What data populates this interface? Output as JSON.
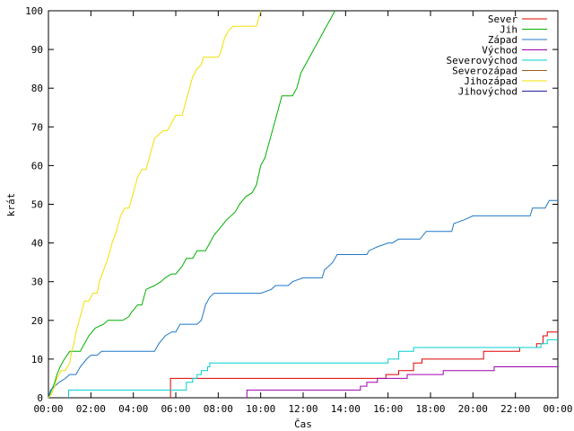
{
  "chart_data": {
    "type": "line",
    "title": "",
    "xlabel": "Čas",
    "ylabel": "krát",
    "xlim": [
      0,
      24
    ],
    "ylim": [
      0,
      100
    ],
    "grid": false,
    "legend_position": "top-right",
    "x_ticks": [
      {
        "value": 0,
        "label": "00:00"
      },
      {
        "value": 2,
        "label": "02:00"
      },
      {
        "value": 4,
        "label": "04:00"
      },
      {
        "value": 6,
        "label": "06:00"
      },
      {
        "value": 8,
        "label": "08:00"
      },
      {
        "value": 10,
        "label": "10:00"
      },
      {
        "value": 12,
        "label": "12:00"
      },
      {
        "value": 14,
        "label": "14:00"
      },
      {
        "value": 16,
        "label": "16:00"
      },
      {
        "value": 18,
        "label": "18:00"
      },
      {
        "value": 20,
        "label": "20:00"
      },
      {
        "value": 22,
        "label": "22:00"
      },
      {
        "value": 24,
        "label": "00:00"
      }
    ],
    "y_ticks": [
      0,
      10,
      20,
      30,
      40,
      50,
      60,
      70,
      80,
      90,
      100
    ],
    "series": [
      {
        "name": "Sever",
        "color": "#e00000",
        "points": [
          [
            5.75,
            0
          ],
          [
            5.75,
            5
          ],
          [
            14.0,
            5
          ],
          [
            15.9,
            5
          ],
          [
            15.9,
            6
          ],
          [
            16.5,
            6
          ],
          [
            16.5,
            7
          ],
          [
            17.2,
            7
          ],
          [
            17.2,
            9
          ],
          [
            17.6,
            9
          ],
          [
            17.6,
            10
          ],
          [
            20.5,
            10
          ],
          [
            20.5,
            12
          ],
          [
            22.2,
            12
          ],
          [
            22.2,
            13
          ],
          [
            23.0,
            13
          ],
          [
            23.0,
            14
          ],
          [
            23.3,
            14
          ],
          [
            23.3,
            16
          ],
          [
            23.5,
            16
          ],
          [
            23.5,
            17
          ],
          [
            24.0,
            17
          ]
        ]
      },
      {
        "name": "Jih",
        "color": "#00b000",
        "points": [
          [
            0.0,
            0
          ],
          [
            0.15,
            2
          ],
          [
            0.3,
            4
          ],
          [
            0.4,
            6
          ],
          [
            0.55,
            8
          ],
          [
            0.75,
            10
          ],
          [
            1.0,
            12
          ],
          [
            1.2,
            12
          ],
          [
            1.5,
            12
          ],
          [
            1.7,
            14
          ],
          [
            1.9,
            16
          ],
          [
            2.2,
            18
          ],
          [
            2.6,
            19
          ],
          [
            2.8,
            20
          ],
          [
            3.5,
            20
          ],
          [
            3.8,
            21
          ],
          [
            3.9,
            22
          ],
          [
            4.2,
            24
          ],
          [
            4.4,
            24
          ],
          [
            4.5,
            26
          ],
          [
            4.6,
            28
          ],
          [
            5.0,
            29
          ],
          [
            5.3,
            30
          ],
          [
            5.5,
            31
          ],
          [
            5.8,
            32
          ],
          [
            6.0,
            32
          ],
          [
            6.3,
            34
          ],
          [
            6.5,
            36
          ],
          [
            6.8,
            36
          ],
          [
            7.0,
            38
          ],
          [
            7.4,
            38
          ],
          [
            7.6,
            40
          ],
          [
            7.8,
            42
          ],
          [
            8.1,
            44
          ],
          [
            8.4,
            46
          ],
          [
            8.8,
            48
          ],
          [
            9.0,
            50
          ],
          [
            9.3,
            52
          ],
          [
            9.6,
            53
          ],
          [
            9.8,
            55
          ],
          [
            10.0,
            60
          ],
          [
            10.2,
            62
          ],
          [
            10.4,
            66
          ],
          [
            10.6,
            70
          ],
          [
            10.8,
            74
          ],
          [
            11.0,
            78
          ],
          [
            11.5,
            78
          ],
          [
            11.7,
            80
          ],
          [
            11.9,
            84
          ],
          [
            12.1,
            86
          ],
          [
            12.3,
            88
          ],
          [
            12.5,
            90
          ],
          [
            12.7,
            92
          ],
          [
            12.9,
            94
          ],
          [
            13.1,
            96
          ],
          [
            13.3,
            98
          ],
          [
            13.5,
            100
          ]
        ]
      },
      {
        "name": "Západ",
        "color": "#1f78c8",
        "points": [
          [
            0.0,
            0
          ],
          [
            0.1,
            2
          ],
          [
            0.3,
            3
          ],
          [
            0.5,
            4
          ],
          [
            0.8,
            5
          ],
          [
            1.0,
            6
          ],
          [
            1.3,
            6
          ],
          [
            1.5,
            8
          ],
          [
            1.8,
            10
          ],
          [
            2.0,
            11
          ],
          [
            2.3,
            11
          ],
          [
            2.5,
            12
          ],
          [
            3.5,
            12
          ],
          [
            4.0,
            12
          ],
          [
            5.0,
            12
          ],
          [
            5.2,
            14
          ],
          [
            5.5,
            16
          ],
          [
            5.8,
            17
          ],
          [
            6.0,
            17
          ],
          [
            6.2,
            19
          ],
          [
            7.0,
            19
          ],
          [
            7.2,
            20
          ],
          [
            7.3,
            22
          ],
          [
            7.4,
            24
          ],
          [
            7.6,
            26
          ],
          [
            7.8,
            27
          ],
          [
            10.0,
            27
          ],
          [
            10.5,
            28
          ],
          [
            10.7,
            29
          ],
          [
            11.3,
            29
          ],
          [
            11.5,
            30
          ],
          [
            12.0,
            31
          ],
          [
            12.9,
            31
          ],
          [
            13.0,
            33
          ],
          [
            13.2,
            34
          ],
          [
            13.4,
            35
          ],
          [
            13.6,
            37
          ],
          [
            14.0,
            37
          ],
          [
            15.0,
            37
          ],
          [
            15.1,
            38
          ],
          [
            15.5,
            39
          ],
          [
            16.0,
            40
          ],
          [
            16.2,
            40
          ],
          [
            16.5,
            41
          ],
          [
            17.5,
            41
          ],
          [
            17.8,
            43
          ],
          [
            19.0,
            43
          ],
          [
            19.1,
            45
          ],
          [
            19.6,
            46
          ],
          [
            20.0,
            47
          ],
          [
            22.7,
            47
          ],
          [
            22.8,
            49
          ],
          [
            23.4,
            49
          ],
          [
            23.6,
            51
          ],
          [
            24.0,
            51
          ]
        ]
      },
      {
        "name": "Východ",
        "color": "#a000b0",
        "points": [
          [
            9.35,
            0
          ],
          [
            9.35,
            2
          ],
          [
            14.7,
            2
          ],
          [
            14.7,
            3
          ],
          [
            15.0,
            3
          ],
          [
            15.0,
            4
          ],
          [
            15.5,
            4
          ],
          [
            15.5,
            5
          ],
          [
            16.9,
            5
          ],
          [
            16.9,
            6
          ],
          [
            18.6,
            6
          ],
          [
            18.6,
            7
          ],
          [
            21.0,
            7
          ],
          [
            21.0,
            8
          ],
          [
            24.0,
            8
          ]
        ]
      },
      {
        "name": "Severovýchod",
        "color": "#00d0d0",
        "points": [
          [
            0.95,
            0
          ],
          [
            0.95,
            2
          ],
          [
            6.5,
            2
          ],
          [
            6.5,
            4
          ],
          [
            6.8,
            4
          ],
          [
            6.8,
            5
          ],
          [
            7.0,
            5
          ],
          [
            7.0,
            6
          ],
          [
            7.2,
            6
          ],
          [
            7.2,
            7
          ],
          [
            7.5,
            7
          ],
          [
            7.5,
            8
          ],
          [
            7.6,
            8
          ],
          [
            7.6,
            9
          ],
          [
            16.0,
            9
          ],
          [
            16.0,
            10
          ],
          [
            16.5,
            10
          ],
          [
            16.5,
            12
          ],
          [
            17.2,
            12
          ],
          [
            17.2,
            13
          ],
          [
            23.2,
            13
          ],
          [
            23.2,
            14
          ],
          [
            23.5,
            14
          ],
          [
            23.5,
            15
          ],
          [
            24.0,
            15
          ]
        ]
      },
      {
        "name": "Severozápad",
        "color": "#a06020",
        "points": []
      },
      {
        "name": "Jihozápad",
        "color": "#f0e000",
        "points": [
          [
            0.0,
            0
          ],
          [
            0.15,
            1
          ],
          [
            0.3,
            3
          ],
          [
            0.4,
            5
          ],
          [
            0.6,
            7
          ],
          [
            0.8,
            7
          ],
          [
            1.0,
            9
          ],
          [
            1.1,
            12
          ],
          [
            1.2,
            14
          ],
          [
            1.3,
            17
          ],
          [
            1.4,
            19
          ],
          [
            1.5,
            21
          ],
          [
            1.6,
            23
          ],
          [
            1.7,
            25
          ],
          [
            1.9,
            25
          ],
          [
            2.1,
            27
          ],
          [
            2.3,
            27
          ],
          [
            2.4,
            30
          ],
          [
            2.6,
            33
          ],
          [
            2.8,
            36
          ],
          [
            3.0,
            40
          ],
          [
            3.2,
            43
          ],
          [
            3.4,
            47
          ],
          [
            3.6,
            49
          ],
          [
            3.8,
            49
          ],
          [
            4.0,
            53
          ],
          [
            4.2,
            57
          ],
          [
            4.4,
            59
          ],
          [
            4.6,
            59
          ],
          [
            4.8,
            63
          ],
          [
            5.0,
            67
          ],
          [
            5.2,
            68
          ],
          [
            5.4,
            69
          ],
          [
            5.6,
            69
          ],
          [
            5.8,
            71
          ],
          [
            6.0,
            73
          ],
          [
            6.3,
            73
          ],
          [
            6.5,
            77
          ],
          [
            6.7,
            81
          ],
          [
            6.8,
            83
          ],
          [
            7.0,
            85
          ],
          [
            7.2,
            86
          ],
          [
            7.3,
            88
          ],
          [
            8.0,
            88
          ],
          [
            8.1,
            89
          ],
          [
            8.2,
            91
          ],
          [
            8.3,
            93
          ],
          [
            8.5,
            95
          ],
          [
            8.7,
            96
          ],
          [
            9.8,
            96
          ],
          [
            9.9,
            98
          ],
          [
            10.0,
            100
          ]
        ]
      },
      {
        "name": "Jihovýchod",
        "color": "#2020a0",
        "points": []
      }
    ]
  }
}
